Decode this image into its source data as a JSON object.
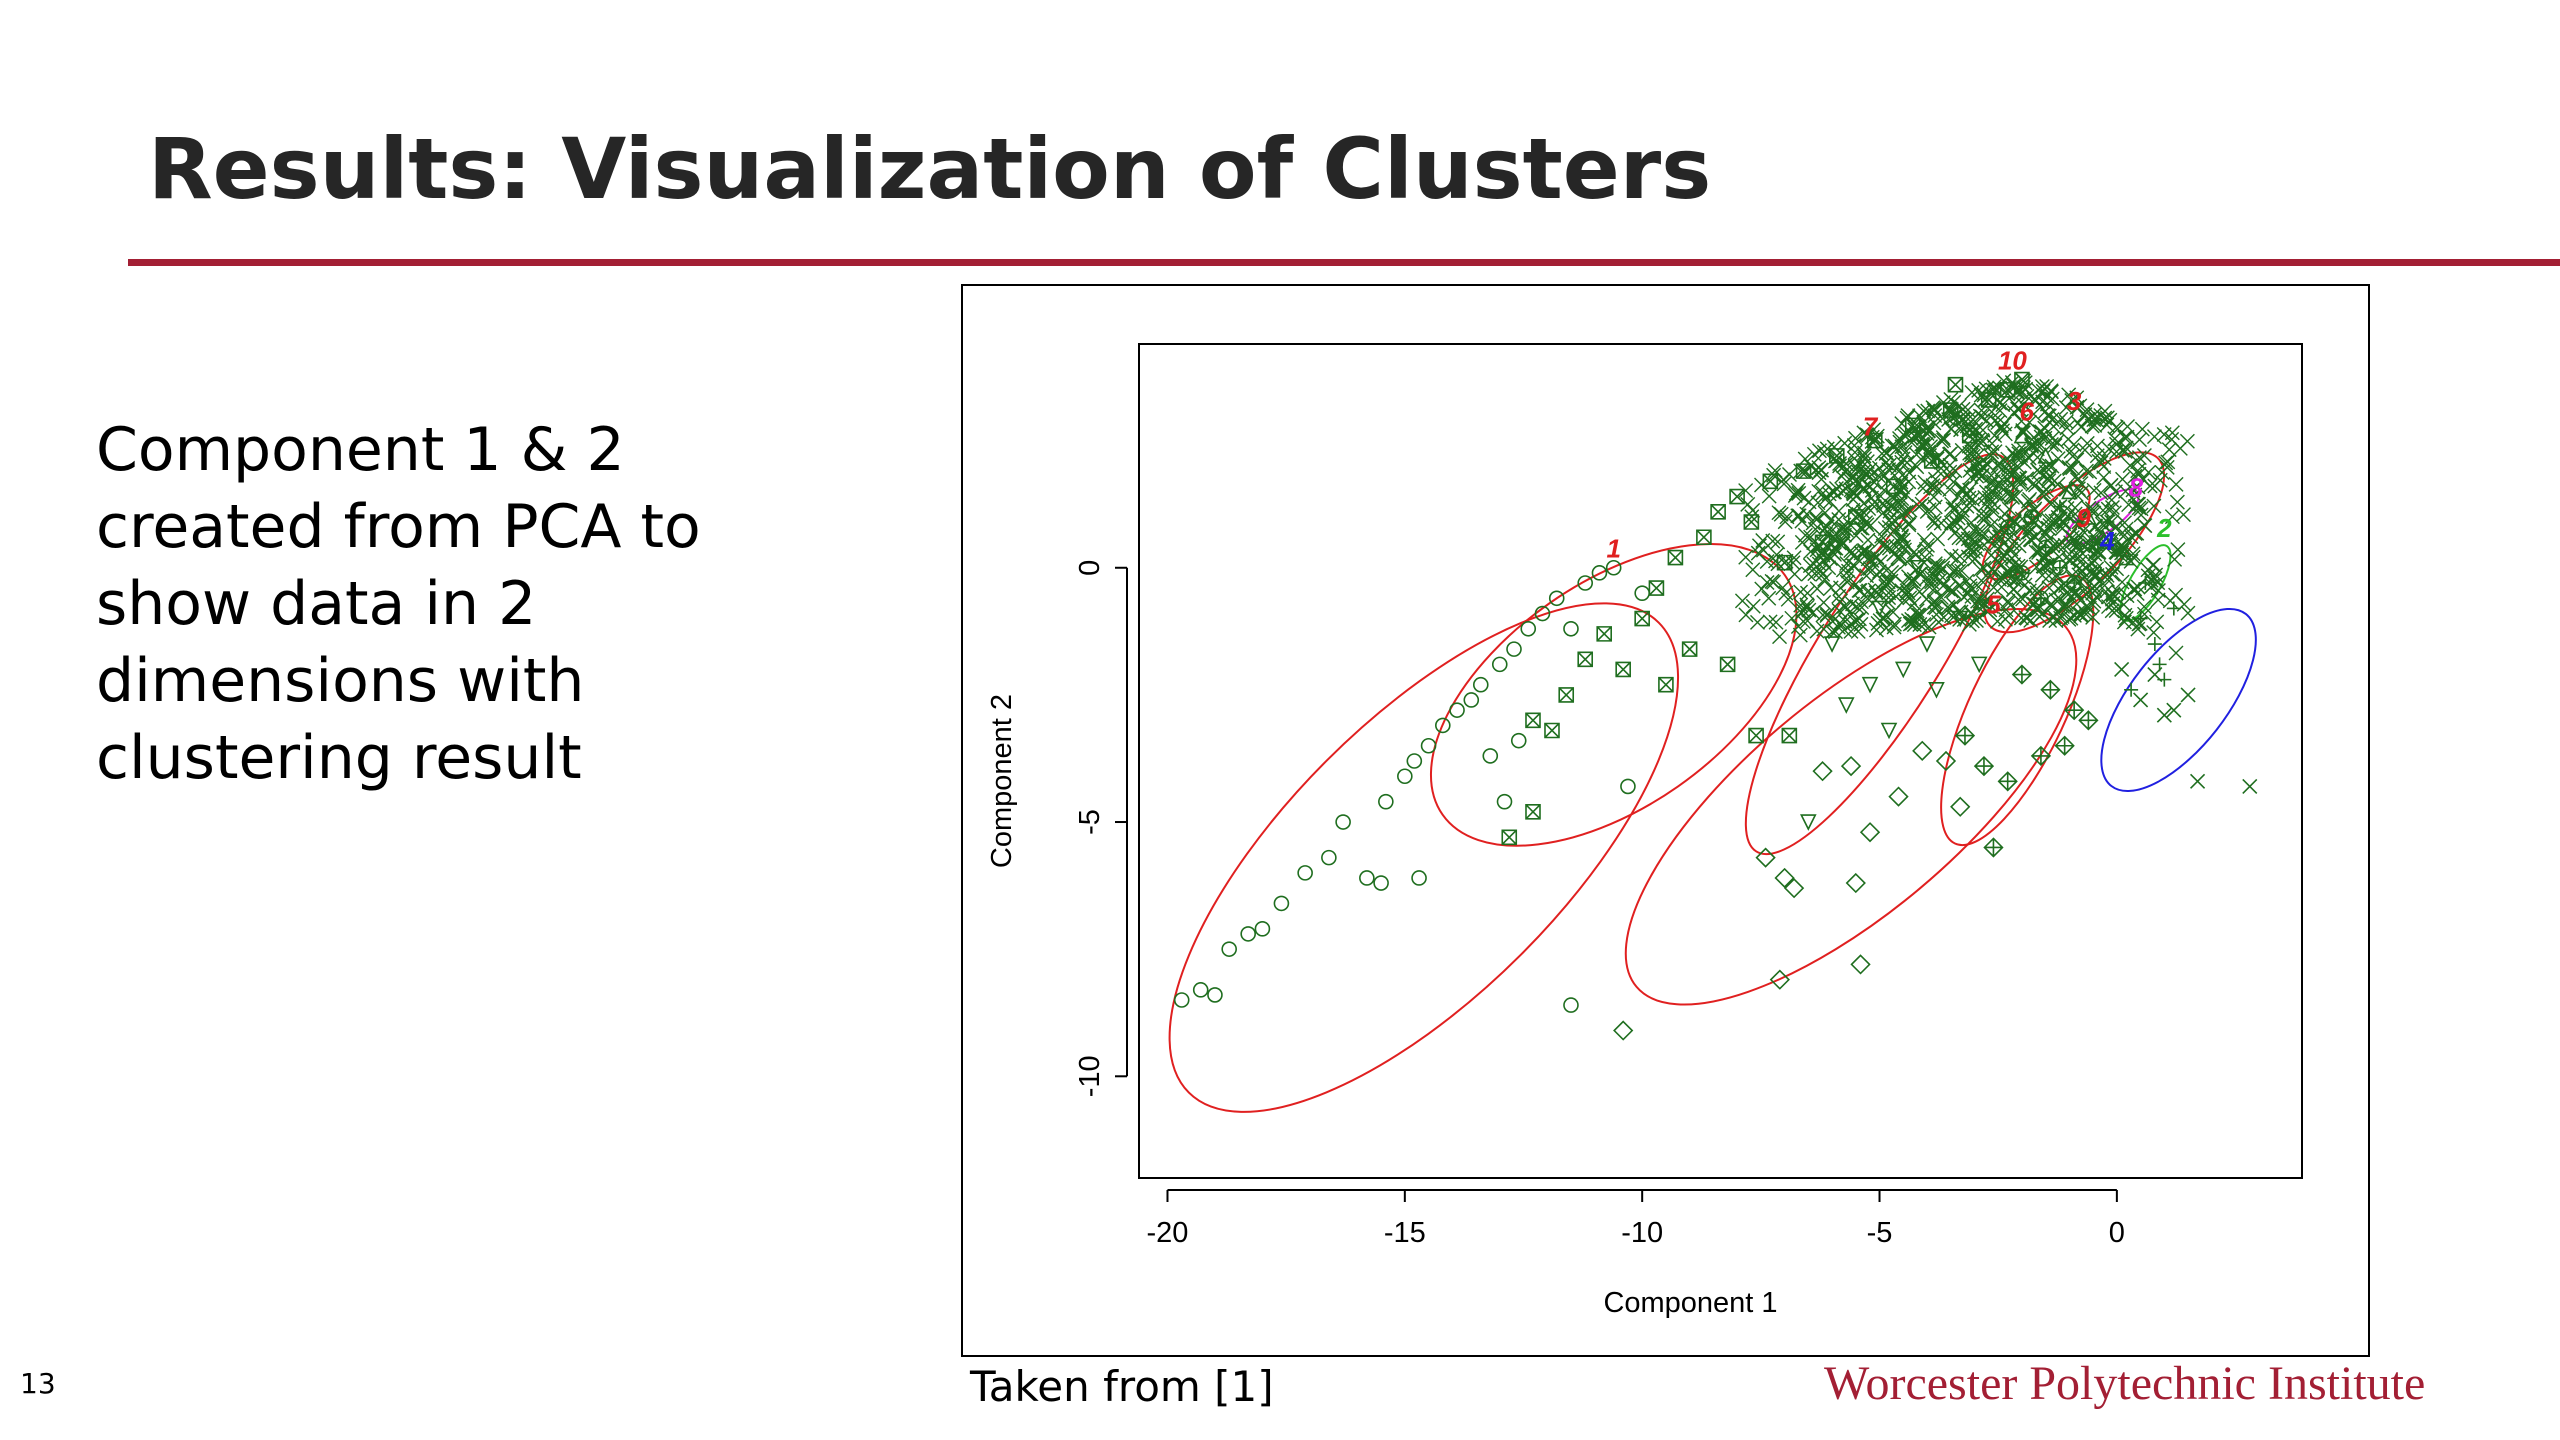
{
  "slide": {
    "title": "Results: Visualization of Clusters",
    "body": "Component 1 & 2 created from PCA to show data in 2 dimensions with clustering result",
    "caption": "Taken from [1]",
    "logo": "Worcester Polytechnic Institute",
    "page_number": "13",
    "accent_color": "#a31f34"
  },
  "chart_data": {
    "type": "scatter",
    "title": "",
    "xlabel": "Component 1",
    "ylabel": "Component 2",
    "xlim": [
      -20.6,
      3.9
    ],
    "ylim": [
      -12.0,
      4.4
    ],
    "xticks": [
      -20,
      -15,
      -10,
      -5,
      0
    ],
    "yticks": [
      0,
      -5,
      -10
    ],
    "point_color": "#1f6e1f",
    "grid": false,
    "legend": "none",
    "clusters": [
      {
        "label": "1",
        "color": "#e02020",
        "marker": "circle",
        "points": [
          [
            -19.7,
            -8.5
          ],
          [
            -19.3,
            -8.3
          ],
          [
            -19.0,
            -8.4
          ],
          [
            -18.7,
            -7.5
          ],
          [
            -18.3,
            -7.2
          ],
          [
            -18.0,
            -7.1
          ],
          [
            -17.6,
            -6.6
          ],
          [
            -17.1,
            -6.0
          ],
          [
            -16.6,
            -5.7
          ],
          [
            -16.3,
            -5.0
          ],
          [
            -15.8,
            -6.1
          ],
          [
            -15.5,
            -6.2
          ],
          [
            -15.4,
            -4.6
          ],
          [
            -15.0,
            -4.1
          ],
          [
            -14.8,
            -3.8
          ],
          [
            -14.5,
            -3.5
          ],
          [
            -14.2,
            -3.1
          ],
          [
            -13.9,
            -2.8
          ],
          [
            -13.6,
            -2.6
          ],
          [
            -13.4,
            -2.3
          ],
          [
            -13.0,
            -1.9
          ],
          [
            -12.7,
            -1.6
          ],
          [
            -12.4,
            -1.2
          ],
          [
            -12.1,
            -0.9
          ],
          [
            -11.8,
            -0.6
          ],
          [
            -11.5,
            -1.2
          ],
          [
            -11.2,
            -0.3
          ],
          [
            -10.9,
            -0.1
          ],
          [
            -10.6,
            0.0
          ],
          [
            -12.6,
            -3.4
          ],
          [
            -13.2,
            -3.7
          ],
          [
            -12.9,
            -4.6
          ],
          [
            -11.5,
            -8.6
          ],
          [
            -14.7,
            -6.1
          ],
          [
            -10.3,
            -4.3
          ],
          [
            -10.0,
            -0.5
          ]
        ]
      },
      {
        "label": "2",
        "color": "#2bbf2b",
        "marker": "plus",
        "points": [
          [
            0.5,
            -1.0
          ],
          [
            0.8,
            -1.5
          ],
          [
            1.0,
            -2.2
          ],
          [
            0.3,
            -2.4
          ],
          [
            1.2,
            -0.8
          ],
          [
            0.6,
            -0.3
          ],
          [
            0.9,
            -1.9
          ]
        ]
      },
      {
        "label": "3",
        "color": "#e02020",
        "marker": "triangle-point-up",
        "points": [
          [
            -1.0,
            1.5
          ],
          [
            -0.6,
            1.0
          ],
          [
            -0.3,
            0.6
          ],
          [
            -1.5,
            2.2
          ],
          [
            -2.0,
            2.6
          ],
          [
            0.2,
            0.2
          ]
        ]
      },
      {
        "label": "4",
        "color": "#2020e0",
        "marker": "x",
        "points": [
          [
            0.1,
            -2.0
          ],
          [
            0.5,
            -2.6
          ],
          [
            1.0,
            -2.9
          ],
          [
            1.5,
            -2.5
          ],
          [
            1.7,
            -4.2
          ],
          [
            2.8,
            -4.3
          ],
          [
            0.8,
            -2.1
          ],
          [
            1.2,
            -2.8
          ]
        ]
      },
      {
        "label": "5",
        "color": "#e02020",
        "marker": "diamond-plus",
        "points": [
          [
            -2.6,
            -5.5
          ],
          [
            -2.3,
            -4.2
          ],
          [
            -1.6,
            -3.7
          ],
          [
            -1.1,
            -3.5
          ],
          [
            -0.9,
            -2.8
          ],
          [
            -1.4,
            -2.4
          ],
          [
            -2.8,
            -3.9
          ],
          [
            -3.2,
            -3.3
          ],
          [
            -2.0,
            -2.1
          ],
          [
            -0.6,
            -3.0
          ]
        ]
      },
      {
        "label": "6",
        "color": "#e02020",
        "marker": "diamond",
        "points": [
          [
            -10.4,
            -9.1
          ],
          [
            -7.4,
            -5.7
          ],
          [
            -7.0,
            -6.1
          ],
          [
            -6.8,
            -6.3
          ],
          [
            -7.1,
            -8.1
          ],
          [
            -5.5,
            -6.2
          ],
          [
            -5.4,
            -7.8
          ],
          [
            -6.2,
            -4.0
          ],
          [
            -5.2,
            -5.2
          ],
          [
            -5.6,
            -3.9
          ],
          [
            -4.6,
            -4.5
          ],
          [
            -4.1,
            -3.6
          ],
          [
            -3.6,
            -3.8
          ],
          [
            -3.3,
            -4.7
          ]
        ]
      },
      {
        "label": "7",
        "color": "#e02020",
        "marker": "triangle-down",
        "points": [
          [
            -6.5,
            -5.0
          ],
          [
            -5.7,
            -2.7
          ],
          [
            -5.2,
            -2.3
          ],
          [
            -4.8,
            -3.2
          ],
          [
            -4.5,
            -2.0
          ],
          [
            -4.0,
            -1.5
          ],
          [
            -3.8,
            -2.4
          ],
          [
            -3.3,
            -1.0
          ],
          [
            -2.9,
            -1.9
          ],
          [
            -6.0,
            -1.5
          ],
          [
            -5.0,
            -0.8
          ],
          [
            -4.2,
            0.0
          ]
        ]
      },
      {
        "label": "8",
        "color": "#e020e0",
        "marker": "star",
        "points": [
          [
            -0.8,
            0.9
          ],
          [
            -0.4,
            0.5
          ],
          [
            0.0,
            0.3
          ],
          [
            -1.2,
            1.2
          ],
          [
            -0.2,
            0.9
          ]
        ]
      },
      {
        "label": "9",
        "color": "#e02020",
        "marker": "circle-plus",
        "points": [
          [
            -1.8,
            1.0
          ],
          [
            -1.5,
            0.4
          ],
          [
            -1.2,
            0.0
          ],
          [
            -0.9,
            -0.3
          ],
          [
            -2.3,
            0.8
          ],
          [
            -2.0,
            -0.1
          ],
          [
            -1.6,
            -0.6
          ]
        ]
      },
      {
        "label": "10",
        "color": "#e02020",
        "marker": "square-x",
        "points": [
          [
            -12.8,
            -5.3
          ],
          [
            -12.3,
            -3.0
          ],
          [
            -11.9,
            -3.2
          ],
          [
            -11.6,
            -2.5
          ],
          [
            -11.2,
            -1.8
          ],
          [
            -10.8,
            -1.3
          ],
          [
            -10.4,
            -2.0
          ],
          [
            -10.0,
            -1.0
          ],
          [
            -9.7,
            -0.4
          ],
          [
            -9.3,
            0.2
          ],
          [
            -9.0,
            -1.6
          ],
          [
            -8.7,
            0.6
          ],
          [
            -8.4,
            1.1
          ],
          [
            -8.0,
            1.4
          ],
          [
            -7.7,
            0.9
          ],
          [
            -7.3,
            1.7
          ],
          [
            -7.0,
            0.1
          ],
          [
            -6.6,
            1.9
          ],
          [
            -6.2,
            0.5
          ],
          [
            -5.9,
            2.2
          ],
          [
            -5.5,
            1.0
          ],
          [
            -5.1,
            2.5
          ],
          [
            -4.7,
            1.6
          ],
          [
            -4.3,
            2.8
          ],
          [
            -3.9,
            2.1
          ],
          [
            -3.5,
            3.1
          ],
          [
            -3.1,
            2.6
          ],
          [
            -2.7,
            3.3
          ],
          [
            -2.3,
            3.5
          ],
          [
            -7.6,
            -3.3
          ],
          [
            -6.9,
            -3.3
          ],
          [
            -8.2,
            -1.9
          ],
          [
            -9.5,
            -2.3
          ],
          [
            -12.3,
            -4.8
          ],
          [
            -3.4,
            3.6
          ],
          [
            -2.0,
            3.7
          ]
        ]
      }
    ],
    "ellipses": [
      {
        "label": "1",
        "color": "#e02020",
        "cx": -14.6,
        "cy": -5.7,
        "rx": 7.0,
        "ry": 2.7,
        "angle": 45
      },
      {
        "label": "2",
        "color": "#2bbf2b",
        "cx": 0.6,
        "cy": -0.3,
        "rx": 0.9,
        "ry": 0.3,
        "angle": 60
      },
      {
        "label": "3",
        "color": "#e02020",
        "cx": -0.9,
        "cy": 0.5,
        "rx": 2.5,
        "ry": 0.9,
        "angle": 45
      },
      {
        "label": "4",
        "color": "#2020e0",
        "cx": 1.3,
        "cy": -2.6,
        "rx": 2.3,
        "ry": 0.95,
        "angle": 52
      },
      {
        "label": "5",
        "color": "#e02020",
        "cx": -2.1,
        "cy": -2.8,
        "rx": 3.1,
        "ry": 0.95,
        "angle": 65
      },
      {
        "label": "6",
        "color": "#e02020",
        "cx": -5.6,
        "cy": -4.7,
        "rx": 5.9,
        "ry": 2.1,
        "angle": 40
      },
      {
        "label": "7",
        "color": "#e02020",
        "cx": -5.0,
        "cy": -1.7,
        "rx": 4.9,
        "ry": 1.2,
        "angle": 58
      },
      {
        "label": "8",
        "color": "#e020e0",
        "cx": -0.3,
        "cy": 1.0,
        "rx": 0.9,
        "ry": 0.3,
        "angle": 35
      },
      {
        "label": "9",
        "color": "#e02020",
        "cx": -1.7,
        "cy": 0.7,
        "rx": 1.4,
        "ry": 0.5,
        "angle": 40
      },
      {
        "label": "10",
        "color": "#e02020",
        "cx": -10.6,
        "cy": -2.5,
        "rx": 4.4,
        "ry": 2.2,
        "angle": 35
      }
    ],
    "cluster_labels": [
      {
        "text": "1",
        "x": -10.6,
        "y": 0.2,
        "color": "#e02020"
      },
      {
        "text": "2",
        "x": 1.0,
        "y": 0.6,
        "color": "#2bbf2b"
      },
      {
        "text": "3",
        "x": -0.9,
        "y": 3.1,
        "color": "#e02020"
      },
      {
        "text": "4",
        "x": -0.2,
        "y": 0.35,
        "color": "#2020e0"
      },
      {
        "text": "5",
        "x": -2.6,
        "y": -0.9,
        "color": "#e02020"
      },
      {
        "text": "6",
        "x": -1.9,
        "y": 2.9,
        "color": "#e02020"
      },
      {
        "text": "7",
        "x": -5.2,
        "y": 2.6,
        "color": "#e02020"
      },
      {
        "text": "8",
        "x": 0.4,
        "y": 1.4,
        "color": "#e020e0"
      },
      {
        "text": "9",
        "x": -0.7,
        "y": 0.8,
        "color": "#e02020"
      },
      {
        "text": "10",
        "x": -2.2,
        "y": 3.9,
        "color": "#e02020"
      }
    ]
  }
}
